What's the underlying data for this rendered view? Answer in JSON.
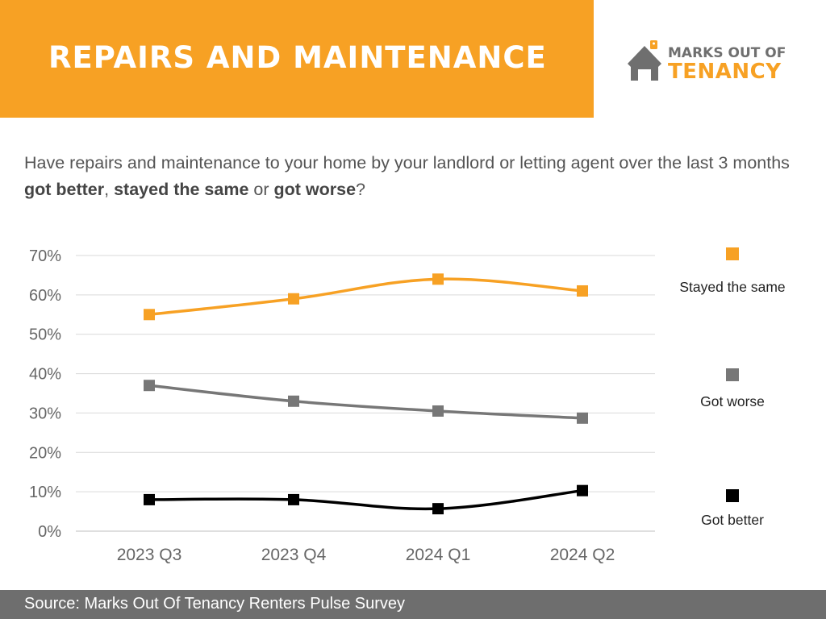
{
  "header": {
    "title": "REPAIRS AND MAINTENANCE"
  },
  "logo": {
    "line1": "MARKS OUT OF",
    "line2": "TENANCY"
  },
  "question": {
    "part1": "Have repairs and maintenance to your home by your landlord or letting agent over the last 3 months ",
    "bold1": "got better",
    "sep1": ", ",
    "bold2": "stayed the same",
    "sep2": " or ",
    "bold3": "got worse",
    "end": "?"
  },
  "footer": {
    "source": "Source: Marks Out Of Tenancy Renters Pulse Survey"
  },
  "colors": {
    "accent": "#f7a124",
    "grey": "#6e6e6e",
    "black": "#000000"
  },
  "chart_data": {
    "type": "line",
    "categories": [
      "2023 Q3",
      "2023 Q4",
      "2024 Q1",
      "2024 Q2"
    ],
    "ylim": [
      0,
      70
    ],
    "yticks": [
      "0%",
      "10%",
      "20%",
      "30%",
      "40%",
      "50%",
      "60%",
      "70%"
    ],
    "grid": true,
    "legend_position": "right",
    "series": [
      {
        "name": "Stayed the same",
        "color": "#f7a124",
        "values": [
          55,
          59,
          64,
          61
        ]
      },
      {
        "name": "Got worse",
        "color": "#777777",
        "values": [
          37,
          33,
          30.5,
          28.7
        ]
      },
      {
        "name": "Got better",
        "color": "#000000",
        "values": [
          8,
          8,
          5.7,
          10.3
        ]
      }
    ]
  }
}
